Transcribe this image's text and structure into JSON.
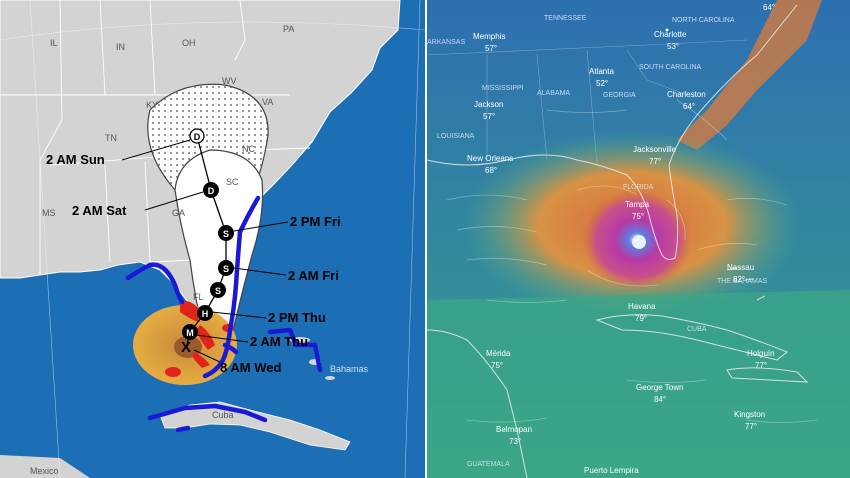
{
  "forecast_map": {
    "state_labels": [
      {
        "id": "il",
        "text": "IL"
      },
      {
        "id": "in",
        "text": "IN"
      },
      {
        "id": "oh",
        "text": "OH"
      },
      {
        "id": "pa",
        "text": "PA"
      },
      {
        "id": "ky",
        "text": "KY"
      },
      {
        "id": "wv",
        "text": "WV"
      },
      {
        "id": "va",
        "text": "VA"
      },
      {
        "id": "tn",
        "text": "TN"
      },
      {
        "id": "nc",
        "text": "NC"
      },
      {
        "id": "sc",
        "text": "SC"
      },
      {
        "id": "ms",
        "text": "MS"
      },
      {
        "id": "ga",
        "text": "GA"
      },
      {
        "id": "fl",
        "text": "FL"
      }
    ],
    "sea_labels": {
      "bahamas": "Bahamas",
      "cuba": "Cuba",
      "mexico": "Mexico"
    },
    "track_labels": [
      {
        "id": "sun",
        "text": "2 AM Sun"
      },
      {
        "id": "sat",
        "text": "2 AM Sat"
      },
      {
        "id": "fri2pm",
        "text": "2 PM Fri"
      },
      {
        "id": "fri2am",
        "text": "2 AM Fri"
      },
      {
        "id": "thu2pm",
        "text": "2 PM Thu"
      },
      {
        "id": "thu2am",
        "text": "2 AM Thu"
      },
      {
        "id": "wed",
        "text": "8 AM Wed"
      }
    ],
    "markers": [
      {
        "id": "m-d1",
        "symbol": "D"
      },
      {
        "id": "m-d2",
        "symbol": "D"
      },
      {
        "id": "m-s1",
        "symbol": "S"
      },
      {
        "id": "m-s2",
        "symbol": "S"
      },
      {
        "id": "m-s3",
        "symbol": "S"
      },
      {
        "id": "m-h",
        "symbol": "H"
      },
      {
        "id": "m-m",
        "symbol": "M"
      },
      {
        "id": "m-x",
        "symbol": "X"
      }
    ],
    "colors": {
      "hurricane_warning": "#e0231b",
      "tropical_storm_warning": "#1a1ad6",
      "wind_field": "#e0a838",
      "core": "#9b5a2a"
    }
  },
  "wind_map": {
    "regions": [
      {
        "id": "arkansas",
        "text": "ARKANSAS"
      },
      {
        "id": "tennessee",
        "text": "TENNESSEE"
      },
      {
        "id": "north-carolina",
        "text": "NORTH CAROLINA"
      },
      {
        "id": "mississippi",
        "text": "MISSISSIPPI"
      },
      {
        "id": "alabama",
        "text": "ALABAMA"
      },
      {
        "id": "georgia",
        "text": "GEORGIA"
      },
      {
        "id": "south-carolina",
        "text": "SOUTH CAROLINA"
      },
      {
        "id": "louisiana",
        "text": "LOUISIANA"
      },
      {
        "id": "florida",
        "text": "FLORIDA"
      },
      {
        "id": "cuba",
        "text": "CUBA"
      },
      {
        "id": "the-bahamas",
        "text": "THE BAHAMAS"
      },
      {
        "id": "guatemala",
        "text": "GUATEMALA"
      }
    ],
    "cities": [
      {
        "id": "memphis",
        "name": "Memphis",
        "temp": "57°"
      },
      {
        "id": "charlotte",
        "name": "Charlotte",
        "temp": "53°"
      },
      {
        "id": "atlanta",
        "name": "Atlanta",
        "temp": "52°"
      },
      {
        "id": "jackson",
        "name": "Jackson",
        "temp": "57°"
      },
      {
        "id": "charleston",
        "name": "Charleston",
        "temp": "64°"
      },
      {
        "id": "jacksonville",
        "name": "Jacksonville",
        "temp": "77°"
      },
      {
        "id": "new-orleans",
        "name": "New Orleans",
        "temp": "68°"
      },
      {
        "id": "tampa",
        "name": "Tampa",
        "temp": "75°"
      },
      {
        "id": "nassau",
        "name": "Nassau",
        "temp": "82°"
      },
      {
        "id": "havana",
        "name": "Havana",
        "temp": "79°"
      },
      {
        "id": "merida",
        "name": "Mérida",
        "temp": "75°"
      },
      {
        "id": "holguin",
        "name": "Holguín",
        "temp": "77°"
      },
      {
        "id": "george-town",
        "name": "George Town",
        "temp": "84°"
      },
      {
        "id": "belmopan",
        "name": "Belmopan",
        "temp": "73°"
      },
      {
        "id": "kingston",
        "name": "Kingston",
        "temp": "77°"
      },
      {
        "id": "puerto-lempira",
        "name": "Puerto Lempira",
        "temp": ""
      }
    ],
    "corner_temp": "64°",
    "colors": {
      "calm": "#2a6bb0",
      "moderate": "#3fae8a",
      "strong": "#d07c45",
      "extreme": "#b03a9a"
    }
  }
}
